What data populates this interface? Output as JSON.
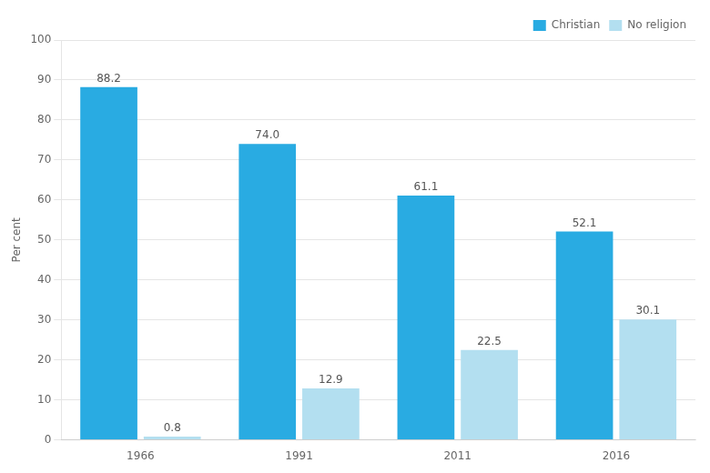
{
  "chart_data": {
    "type": "bar",
    "ylabel": "Per cent",
    "categories": [
      "1966",
      "1991",
      "2011",
      "2016"
    ],
    "series": [
      {
        "name": "Christian",
        "color": "#29ABE2",
        "values": [
          88.2,
          74.0,
          61.1,
          52.1
        ],
        "value_labels": [
          "88.2",
          "74.0",
          "61.1",
          "52.1"
        ]
      },
      {
        "name": "No religion",
        "color": "#B3DFF0",
        "values": [
          0.8,
          12.9,
          22.5,
          30.1
        ],
        "value_labels": [
          "0.8",
          "12.9",
          "22.5",
          "30.1"
        ]
      }
    ],
    "ylim": [
      0,
      100
    ],
    "yticks": [
      0,
      10,
      20,
      30,
      40,
      50,
      60,
      70,
      80,
      90,
      100
    ],
    "grid": true,
    "legend": "upper right",
    "data_labels": true
  }
}
